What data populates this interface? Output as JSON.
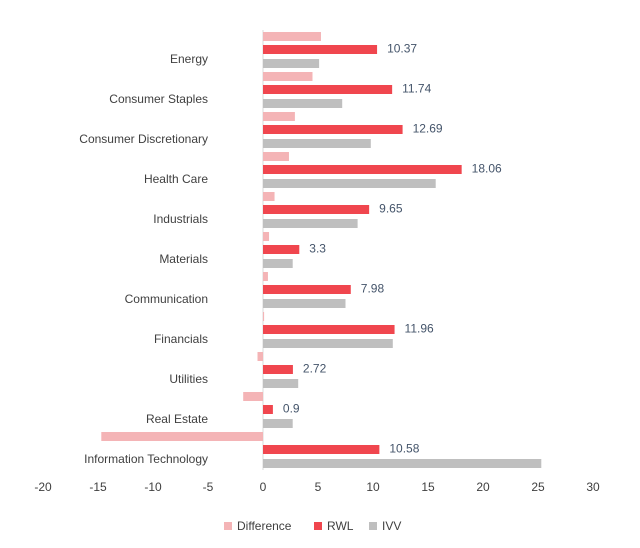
{
  "chart_data": {
    "type": "hbar",
    "categories": [
      "Energy",
      "Consumer Staples",
      "Consumer Discretionary",
      "Health Care",
      "Industrials",
      "Materials",
      "Communication",
      "Financials",
      "Utilities",
      "Real Estate",
      "Information Technology"
    ],
    "series": [
      {
        "name": "Difference",
        "color": "#f4b4b6",
        "values": [
          5.27,
          4.5,
          2.9,
          2.36,
          1.05,
          0.55,
          0.45,
          0.1,
          -0.5,
          -1.8,
          -14.7
        ]
      },
      {
        "name": "RWL",
        "color": "#f0464e",
        "values": [
          10.37,
          11.74,
          12.69,
          18.06,
          9.65,
          3.3,
          7.98,
          11.96,
          2.72,
          0.9,
          10.58
        ],
        "data_labels": true
      },
      {
        "name": "IVV",
        "color": "#bfbfbf",
        "values": [
          5.1,
          7.2,
          9.8,
          15.7,
          8.6,
          2.7,
          7.5,
          11.8,
          3.2,
          2.7,
          25.3
        ]
      }
    ],
    "xlim": [
      -20,
      30
    ],
    "xticks": [
      -20,
      -15,
      -10,
      -5,
      0,
      5,
      10,
      15,
      20,
      25,
      30
    ],
    "legend": "bottom"
  }
}
